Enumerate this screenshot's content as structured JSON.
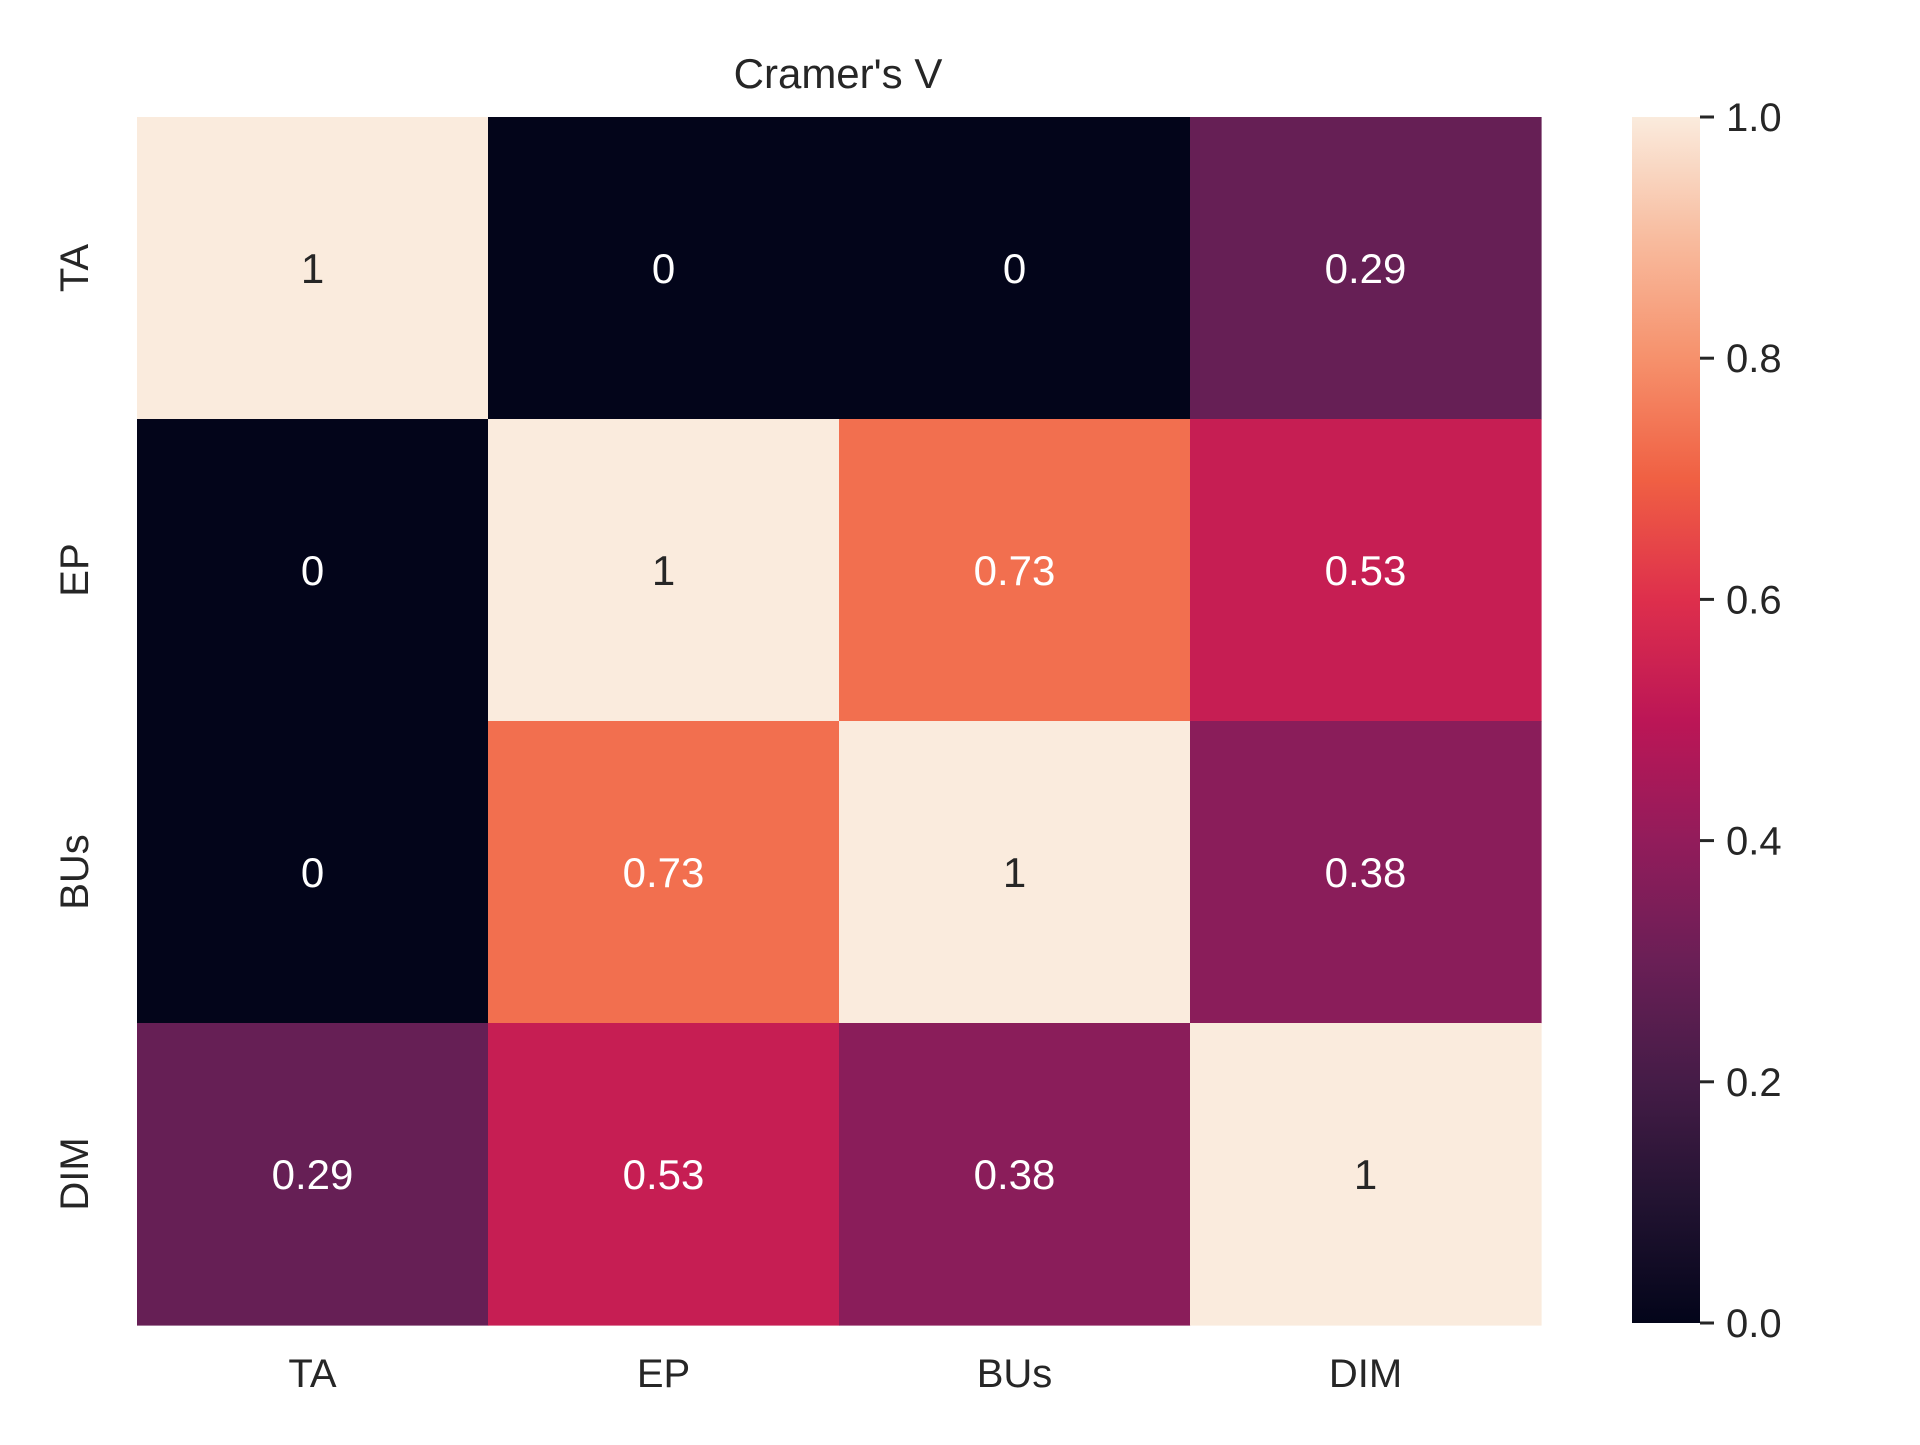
{
  "chart_data": {
    "type": "heatmap",
    "title": "Cramer's V",
    "xlabel": "",
    "ylabel": "",
    "x_categories": [
      "TA",
      "EP",
      "BUs",
      "DIM"
    ],
    "y_categories": [
      "TA",
      "EP",
      "BUs",
      "DIM"
    ],
    "values": [
      [
        1,
        0,
        0,
        0.29
      ],
      [
        0,
        1,
        0.73,
        0.53
      ],
      [
        0,
        0.73,
        1,
        0.38
      ],
      [
        0.29,
        0.53,
        0.38,
        1
      ]
    ],
    "annotations": [
      [
        "1",
        "0",
        "0",
        "0.29"
      ],
      [
        "0",
        "1",
        "0.73",
        "0.53"
      ],
      [
        "0",
        "0.73",
        "1",
        "0.38"
      ],
      [
        "0.29",
        "0.53",
        "0.38",
        "1"
      ]
    ],
    "colorbar": {
      "range": [
        0.0,
        1.0
      ],
      "ticks": [
        0.0,
        0.2,
        0.4,
        0.6,
        0.8,
        1.0
      ],
      "tick_labels": [
        "0.0",
        "0.2",
        "0.4",
        "0.6",
        "0.8",
        "1.0"
      ],
      "colormap_stops": [
        [
          0.0,
          "#03051a"
        ],
        [
          0.1,
          "#221331"
        ],
        [
          0.2,
          "#451c47"
        ],
        [
          0.3,
          "#6a1f56"
        ],
        [
          0.4,
          "#921c5b"
        ],
        [
          0.5,
          "#bc1656"
        ],
        [
          0.6,
          "#de2f4c"
        ],
        [
          0.7,
          "#f06043"
        ],
        [
          0.8,
          "#f6916c"
        ],
        [
          0.9,
          "#f8bc9f"
        ],
        [
          1.0,
          "#faebdd"
        ]
      ]
    },
    "text_colors": {
      "dark_background": "#ffffff",
      "light_background": "#262626",
      "tick_label": "#262626"
    },
    "grid": false
  }
}
